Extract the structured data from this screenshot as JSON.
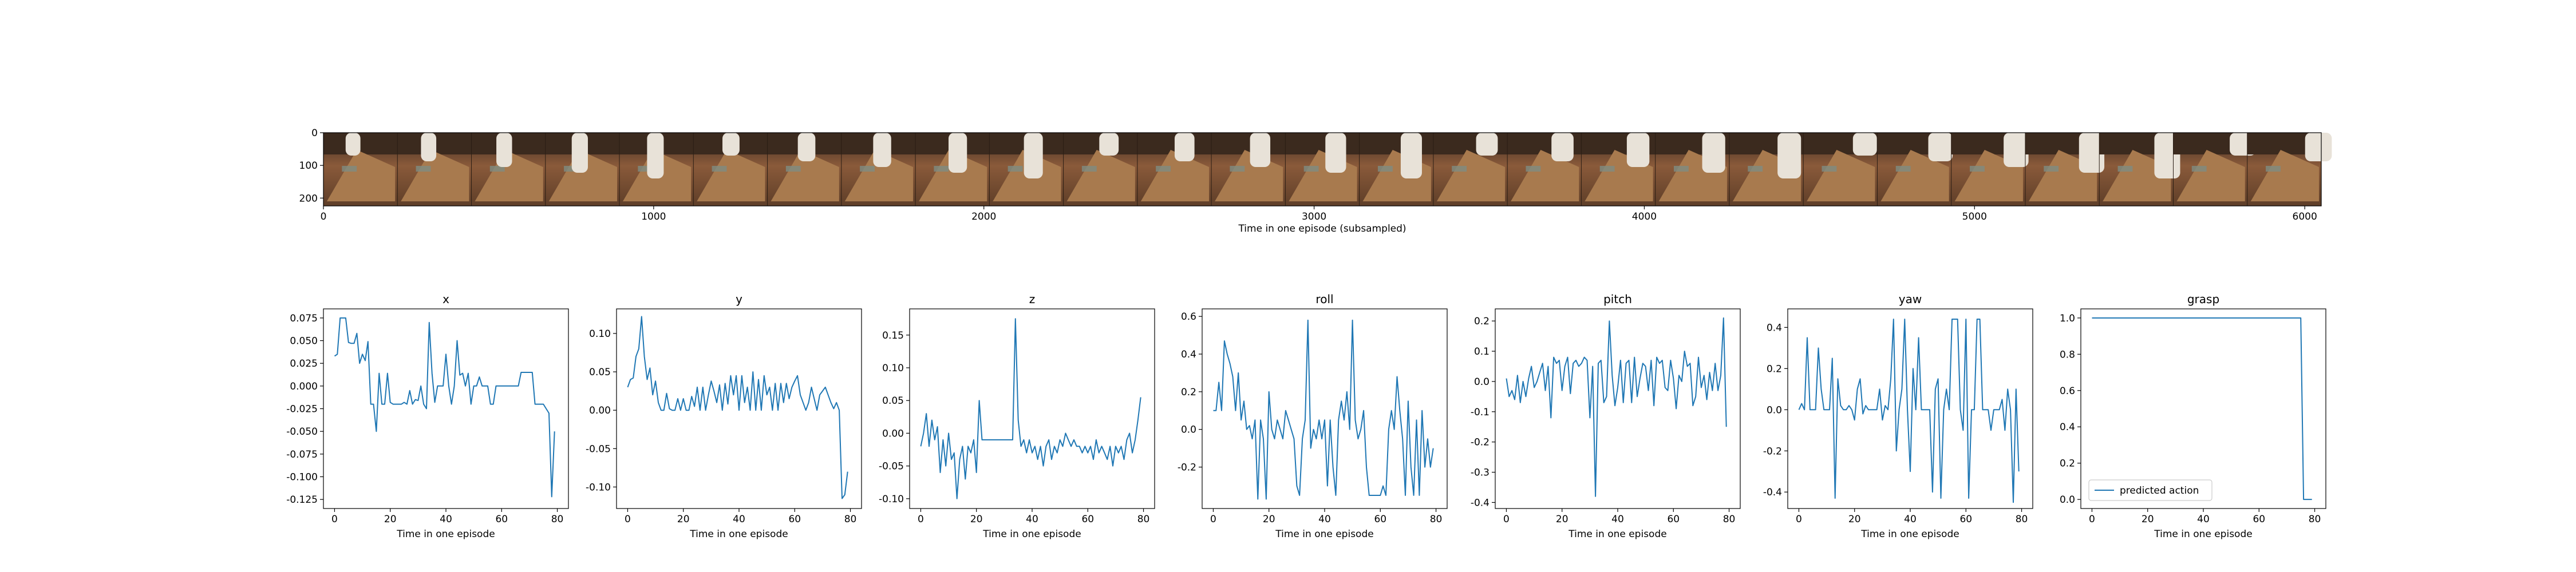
{
  "colors": {
    "line": "#1f77b4",
    "axis": "#000000",
    "background": "#ffffff"
  },
  "filmstrip": {
    "type": "image",
    "xlabel": "Time in one episode (subsampled)",
    "xticks": [
      "0",
      "1000",
      "2000",
      "3000",
      "4000",
      "5000",
      "6000"
    ],
    "yticks": [
      "0",
      "100",
      "200"
    ],
    "xlim": [
      0,
      6050
    ],
    "ylim": [
      0,
      224
    ],
    "frames": 27
  },
  "chart_data": [
    {
      "type": "line",
      "title": "x",
      "xlabel": "Time in one episode",
      "ylabel": "",
      "xlim": [
        -4,
        84
      ],
      "ylim": [
        -0.135,
        0.085
      ],
      "xticks": [
        "0",
        "20",
        "40",
        "60",
        "80"
      ],
      "yticks": [
        "-0.125",
        "-0.100",
        "-0.075",
        "-0.050",
        "-0.025",
        "0.000",
        "0.025",
        "0.050",
        "0.075"
      ],
      "x": [
        0,
        1,
        2,
        3,
        4,
        5,
        6,
        7,
        8,
        9,
        10,
        11,
        12,
        13,
        14,
        15,
        16,
        17,
        18,
        19,
        20,
        21,
        22,
        23,
        24,
        25,
        26,
        27,
        28,
        29,
        30,
        31,
        32,
        33,
        34,
        35,
        36,
        37,
        38,
        39,
        40,
        41,
        42,
        43,
        44,
        45,
        46,
        47,
        48,
        49,
        50,
        51,
        52,
        53,
        54,
        55,
        56,
        57,
        58,
        59,
        60,
        61,
        62,
        63,
        64,
        65,
        66,
        67,
        68,
        69,
        70,
        71,
        72,
        73,
        74,
        75,
        76,
        77,
        78,
        79
      ],
      "values": [
        0.033,
        0.035,
        0.075,
        0.075,
        0.075,
        0.048,
        0.047,
        0.047,
        0.058,
        0.025,
        0.035,
        0.028,
        0.049,
        -0.02,
        -0.02,
        -0.05,
        0.014,
        -0.02,
        -0.02,
        0.014,
        -0.018,
        -0.02,
        -0.02,
        -0.02,
        -0.02,
        -0.018,
        -0.02,
        -0.005,
        -0.02,
        -0.015,
        -0.016,
        0.0,
        -0.02,
        -0.025,
        0.07,
        0.014,
        -0.018,
        0.0,
        0.0,
        0.0,
        0.035,
        0.0,
        -0.02,
        0.0,
        0.05,
        0.012,
        0.014,
        0.0,
        0.014,
        -0.02,
        0.0,
        0.0,
        0.01,
        0.0,
        0.0,
        0.0,
        -0.02,
        -0.02,
        0.0,
        0.0,
        0.0,
        0.0,
        0.0,
        0.0,
        0.0,
        0.0,
        0.0,
        0.015,
        0.015,
        0.015,
        0.015,
        0.015,
        -0.02,
        -0.02,
        -0.02,
        -0.02,
        -0.025,
        -0.03,
        -0.122,
        -0.05
      ]
    },
    {
      "type": "line",
      "title": "y",
      "xlabel": "Time in one episode",
      "ylabel": "",
      "xlim": [
        -4,
        84
      ],
      "ylim": [
        -0.128,
        0.132
      ],
      "xticks": [
        "0",
        "20",
        "40",
        "60",
        "80"
      ],
      "yticks": [
        "-0.10",
        "-0.05",
        "0.00",
        "0.05",
        "0.10"
      ],
      "x": [
        0,
        1,
        2,
        3,
        4,
        5,
        6,
        7,
        8,
        9,
        10,
        11,
        12,
        13,
        14,
        15,
        16,
        17,
        18,
        19,
        20,
        21,
        22,
        23,
        24,
        25,
        26,
        27,
        28,
        29,
        30,
        31,
        32,
        33,
        34,
        35,
        36,
        37,
        38,
        39,
        40,
        41,
        42,
        43,
        44,
        45,
        46,
        47,
        48,
        49,
        50,
        51,
        52,
        53,
        54,
        55,
        56,
        57,
        58,
        59,
        60,
        61,
        62,
        63,
        64,
        65,
        66,
        67,
        68,
        69,
        70,
        71,
        72,
        73,
        74,
        75,
        76,
        77,
        78,
        79
      ],
      "values": [
        0.03,
        0.04,
        0.042,
        0.07,
        0.08,
        0.122,
        0.07,
        0.04,
        0.055,
        0.02,
        0.038,
        0.01,
        0.0,
        0.0,
        0.022,
        0.002,
        0.0,
        0.0,
        0.015,
        0.0,
        0.015,
        0.0,
        0.0,
        0.018,
        0.005,
        0.03,
        0.0,
        0.03,
        0.0,
        0.02,
        0.038,
        0.025,
        0.01,
        0.033,
        0.0,
        0.035,
        0.008,
        0.045,
        0.02,
        0.045,
        0.0,
        0.045,
        0.01,
        0.03,
        0.0,
        0.05,
        0.0,
        0.04,
        0.0,
        0.045,
        0.02,
        0.03,
        0.0,
        0.035,
        0.0,
        0.035,
        0.01,
        0.035,
        0.015,
        0.03,
        0.038,
        0.045,
        0.02,
        0.01,
        0.0,
        0.01,
        0.03,
        0.015,
        0.0,
        0.02,
        0.025,
        0.03,
        0.02,
        0.01,
        0.002,
        0.01,
        0.0,
        -0.115,
        -0.11,
        -0.08
      ]
    },
    {
      "type": "line",
      "title": "z",
      "xlabel": "Time in one episode",
      "ylabel": "",
      "xlim": [
        -4,
        84
      ],
      "ylim": [
        -0.115,
        0.19
      ],
      "xticks": [
        "0",
        "20",
        "40",
        "60",
        "80"
      ],
      "yticks": [
        "-0.10",
        "-0.05",
        "0.00",
        "0.05",
        "0.10",
        "0.15"
      ],
      "x": [
        0,
        1,
        2,
        3,
        4,
        5,
        6,
        7,
        8,
        9,
        10,
        11,
        12,
        13,
        14,
        15,
        16,
        17,
        18,
        19,
        20,
        21,
        22,
        23,
        24,
        25,
        26,
        27,
        28,
        29,
        30,
        31,
        32,
        33,
        34,
        35,
        36,
        37,
        38,
        39,
        40,
        41,
        42,
        43,
        44,
        45,
        46,
        47,
        48,
        49,
        50,
        51,
        52,
        53,
        54,
        55,
        56,
        57,
        58,
        59,
        60,
        61,
        62,
        63,
        64,
        65,
        66,
        67,
        68,
        69,
        70,
        71,
        72,
        73,
        74,
        75,
        76,
        77,
        78,
        79
      ],
      "values": [
        -0.02,
        0.0,
        0.03,
        -0.02,
        0.02,
        -0.01,
        0.01,
        -0.06,
        -0.01,
        -0.05,
        0.0,
        -0.04,
        -0.03,
        -0.1,
        -0.04,
        -0.02,
        -0.07,
        -0.02,
        -0.03,
        -0.01,
        -0.06,
        0.05,
        -0.01,
        -0.01,
        -0.01,
        -0.01,
        -0.01,
        -0.01,
        -0.01,
        -0.01,
        -0.01,
        -0.01,
        -0.01,
        -0.01,
        0.175,
        0.02,
        -0.02,
        -0.01,
        -0.03,
        -0.01,
        -0.03,
        -0.02,
        -0.04,
        -0.02,
        -0.05,
        -0.02,
        -0.01,
        -0.04,
        -0.02,
        -0.03,
        -0.01,
        -0.02,
        0.0,
        -0.01,
        -0.02,
        -0.01,
        -0.02,
        -0.02,
        -0.03,
        -0.02,
        -0.03,
        -0.02,
        -0.04,
        -0.01,
        -0.03,
        -0.02,
        -0.03,
        -0.04,
        -0.02,
        -0.05,
        -0.02,
        -0.03,
        -0.02,
        -0.04,
        -0.01,
        0.0,
        -0.03,
        -0.01,
        0.02,
        0.055
      ]
    },
    {
      "type": "line",
      "title": "roll",
      "xlabel": "Time in one episode",
      "ylabel": "",
      "xlim": [
        -4,
        84
      ],
      "ylim": [
        -0.42,
        0.64
      ],
      "xticks": [
        "0",
        "20",
        "40",
        "60",
        "80"
      ],
      "yticks": [
        "-0.2",
        "0.0",
        "0.2",
        "0.4",
        "0.6"
      ],
      "x": [
        0,
        1,
        2,
        3,
        4,
        5,
        6,
        7,
        8,
        9,
        10,
        11,
        12,
        13,
        14,
        15,
        16,
        17,
        18,
        19,
        20,
        21,
        22,
        23,
        24,
        25,
        26,
        27,
        28,
        29,
        30,
        31,
        32,
        33,
        34,
        35,
        36,
        37,
        38,
        39,
        40,
        41,
        42,
        43,
        44,
        45,
        46,
        47,
        48,
        49,
        50,
        51,
        52,
        53,
        54,
        55,
        56,
        57,
        58,
        59,
        60,
        61,
        62,
        63,
        64,
        65,
        66,
        67,
        68,
        69,
        70,
        71,
        72,
        73,
        74,
        75,
        76,
        77,
        78,
        79
      ],
      "values": [
        0.1,
        0.1,
        0.25,
        0.1,
        0.47,
        0.4,
        0.35,
        0.28,
        0.1,
        0.3,
        0.05,
        0.15,
        0.0,
        0.02,
        -0.05,
        0.05,
        -0.37,
        0.05,
        -0.05,
        -0.37,
        0.2,
        0.0,
        -0.05,
        0.05,
        0.0,
        -0.05,
        0.1,
        0.05,
        0.0,
        -0.05,
        -0.3,
        -0.35,
        -0.05,
        0.05,
        0.58,
        -0.1,
        0.0,
        -0.05,
        0.05,
        -0.05,
        0.05,
        -0.3,
        0.05,
        -0.2,
        -0.35,
        0.05,
        0.15,
        0.05,
        0.2,
        0.0,
        0.58,
        0.05,
        -0.05,
        0.0,
        0.1,
        -0.2,
        -0.35,
        -0.35,
        -0.35,
        -0.35,
        -0.35,
        -0.3,
        -0.35,
        0.0,
        0.1,
        0.0,
        0.28,
        0.1,
        -0.05,
        -0.35,
        0.15,
        -0.2,
        -0.35,
        0.05,
        -0.35,
        0.1,
        -0.2,
        -0.05,
        -0.2,
        -0.1
      ]
    },
    {
      "type": "line",
      "title": "pitch",
      "xlabel": "Time in one episode",
      "ylabel": "",
      "xlim": [
        -4,
        84
      ],
      "ylim": [
        -0.42,
        0.24
      ],
      "xticks": [
        "0",
        "20",
        "40",
        "60",
        "80"
      ],
      "yticks": [
        "-0.4",
        "-0.3",
        "-0.2",
        "-0.1",
        "0.0",
        "0.1",
        "0.2"
      ],
      "x": [
        0,
        1,
        2,
        3,
        4,
        5,
        6,
        7,
        8,
        9,
        10,
        11,
        12,
        13,
        14,
        15,
        16,
        17,
        18,
        19,
        20,
        21,
        22,
        23,
        24,
        25,
        26,
        27,
        28,
        29,
        30,
        31,
        32,
        33,
        34,
        35,
        36,
        37,
        38,
        39,
        40,
        41,
        42,
        43,
        44,
        45,
        46,
        47,
        48,
        49,
        50,
        51,
        52,
        53,
        54,
        55,
        56,
        57,
        58,
        59,
        60,
        61,
        62,
        63,
        64,
        65,
        66,
        67,
        68,
        69,
        70,
        71,
        72,
        73,
        74,
        75,
        76,
        77,
        78,
        79
      ],
      "values": [
        0.01,
        -0.05,
        -0.03,
        -0.06,
        0.02,
        -0.07,
        0.0,
        -0.05,
        0.01,
        0.05,
        -0.02,
        0.0,
        0.03,
        0.06,
        -0.03,
        0.05,
        -0.12,
        0.08,
        0.06,
        0.07,
        -0.03,
        0.05,
        0.08,
        -0.04,
        0.06,
        0.07,
        0.05,
        0.06,
        0.08,
        0.07,
        -0.12,
        0.05,
        -0.38,
        0.06,
        0.07,
        -0.07,
        -0.05,
        0.2,
        0.02,
        -0.08,
        -0.02,
        0.07,
        -0.07,
        0.06,
        0.07,
        -0.07,
        0.08,
        -0.05,
        0.01,
        0.06,
        0.05,
        -0.03,
        0.07,
        -0.08,
        0.08,
        0.06,
        0.07,
        -0.02,
        -0.03,
        0.07,
        0.01,
        -0.09,
        0.02,
        0.0,
        0.1,
        0.05,
        0.06,
        -0.08,
        -0.05,
        0.08,
        -0.02,
        0.02,
        -0.06,
        0.03,
        -0.03,
        0.06,
        -0.03,
        0.02,
        0.21,
        -0.15
      ]
    },
    {
      "type": "line",
      "title": "yaw",
      "xlabel": "Time in one episode",
      "ylabel": "",
      "xlim": [
        -4,
        84
      ],
      "ylim": [
        -0.48,
        0.49
      ],
      "xticks": [
        "0",
        "20",
        "40",
        "60",
        "80"
      ],
      "yticks": [
        "-0.4",
        "-0.2",
        "0.0",
        "0.2",
        "0.4"
      ],
      "x": [
        0,
        1,
        2,
        3,
        4,
        5,
        6,
        7,
        8,
        9,
        10,
        11,
        12,
        13,
        14,
        15,
        16,
        17,
        18,
        19,
        20,
        21,
        22,
        23,
        24,
        25,
        26,
        27,
        28,
        29,
        30,
        31,
        32,
        33,
        34,
        35,
        36,
        37,
        38,
        39,
        40,
        41,
        42,
        43,
        44,
        45,
        46,
        47,
        48,
        49,
        50,
        51,
        52,
        53,
        54,
        55,
        56,
        57,
        58,
        59,
        60,
        61,
        62,
        63,
        64,
        65,
        66,
        67,
        68,
        69,
        70,
        71,
        72,
        73,
        74,
        75,
        76,
        77,
        78,
        79
      ],
      "values": [
        0.0,
        0.03,
        0.0,
        0.35,
        0.0,
        0.0,
        0.0,
        0.3,
        0.1,
        0.0,
        0.0,
        0.0,
        0.25,
        -0.43,
        0.15,
        0.02,
        0.0,
        0.0,
        0.02,
        0.0,
        -0.05,
        0.1,
        0.15,
        -0.02,
        0.02,
        0.0,
        0.0,
        0.0,
        0.0,
        0.1,
        -0.05,
        0.02,
        0.0,
        0.15,
        0.44,
        -0.2,
        0.0,
        0.1,
        0.44,
        0.0,
        -0.3,
        0.2,
        0.0,
        0.35,
        0.0,
        0.0,
        0.0,
        0.0,
        -0.4,
        0.1,
        0.15,
        -0.43,
        0.0,
        0.1,
        0.0,
        0.44,
        0.44,
        0.44,
        0.0,
        -0.1,
        0.44,
        -0.43,
        0.0,
        0.0,
        0.44,
        0.44,
        0.0,
        0.0,
        0.0,
        -0.1,
        0.0,
        0.0,
        0.0,
        0.05,
        -0.1,
        0.1,
        0.0,
        -0.45,
        0.1,
        -0.3
      ]
    },
    {
      "type": "line",
      "title": "grasp",
      "xlabel": "Time in one episode",
      "ylabel": "",
      "xlim": [
        -4,
        84
      ],
      "ylim": [
        -0.05,
        1.05
      ],
      "xticks": [
        "0",
        "20",
        "40",
        "60",
        "80"
      ],
      "yticks": [
        "0.0",
        "0.2",
        "0.4",
        "0.6",
        "0.8",
        "1.0"
      ],
      "legend": {
        "label": "predicted action",
        "placement": "lower-left"
      },
      "x": [
        0,
        75,
        76,
        77,
        78,
        79
      ],
      "values": [
        1.0,
        1.0,
        0.0,
        0.0,
        0.0,
        0.0
      ]
    }
  ]
}
